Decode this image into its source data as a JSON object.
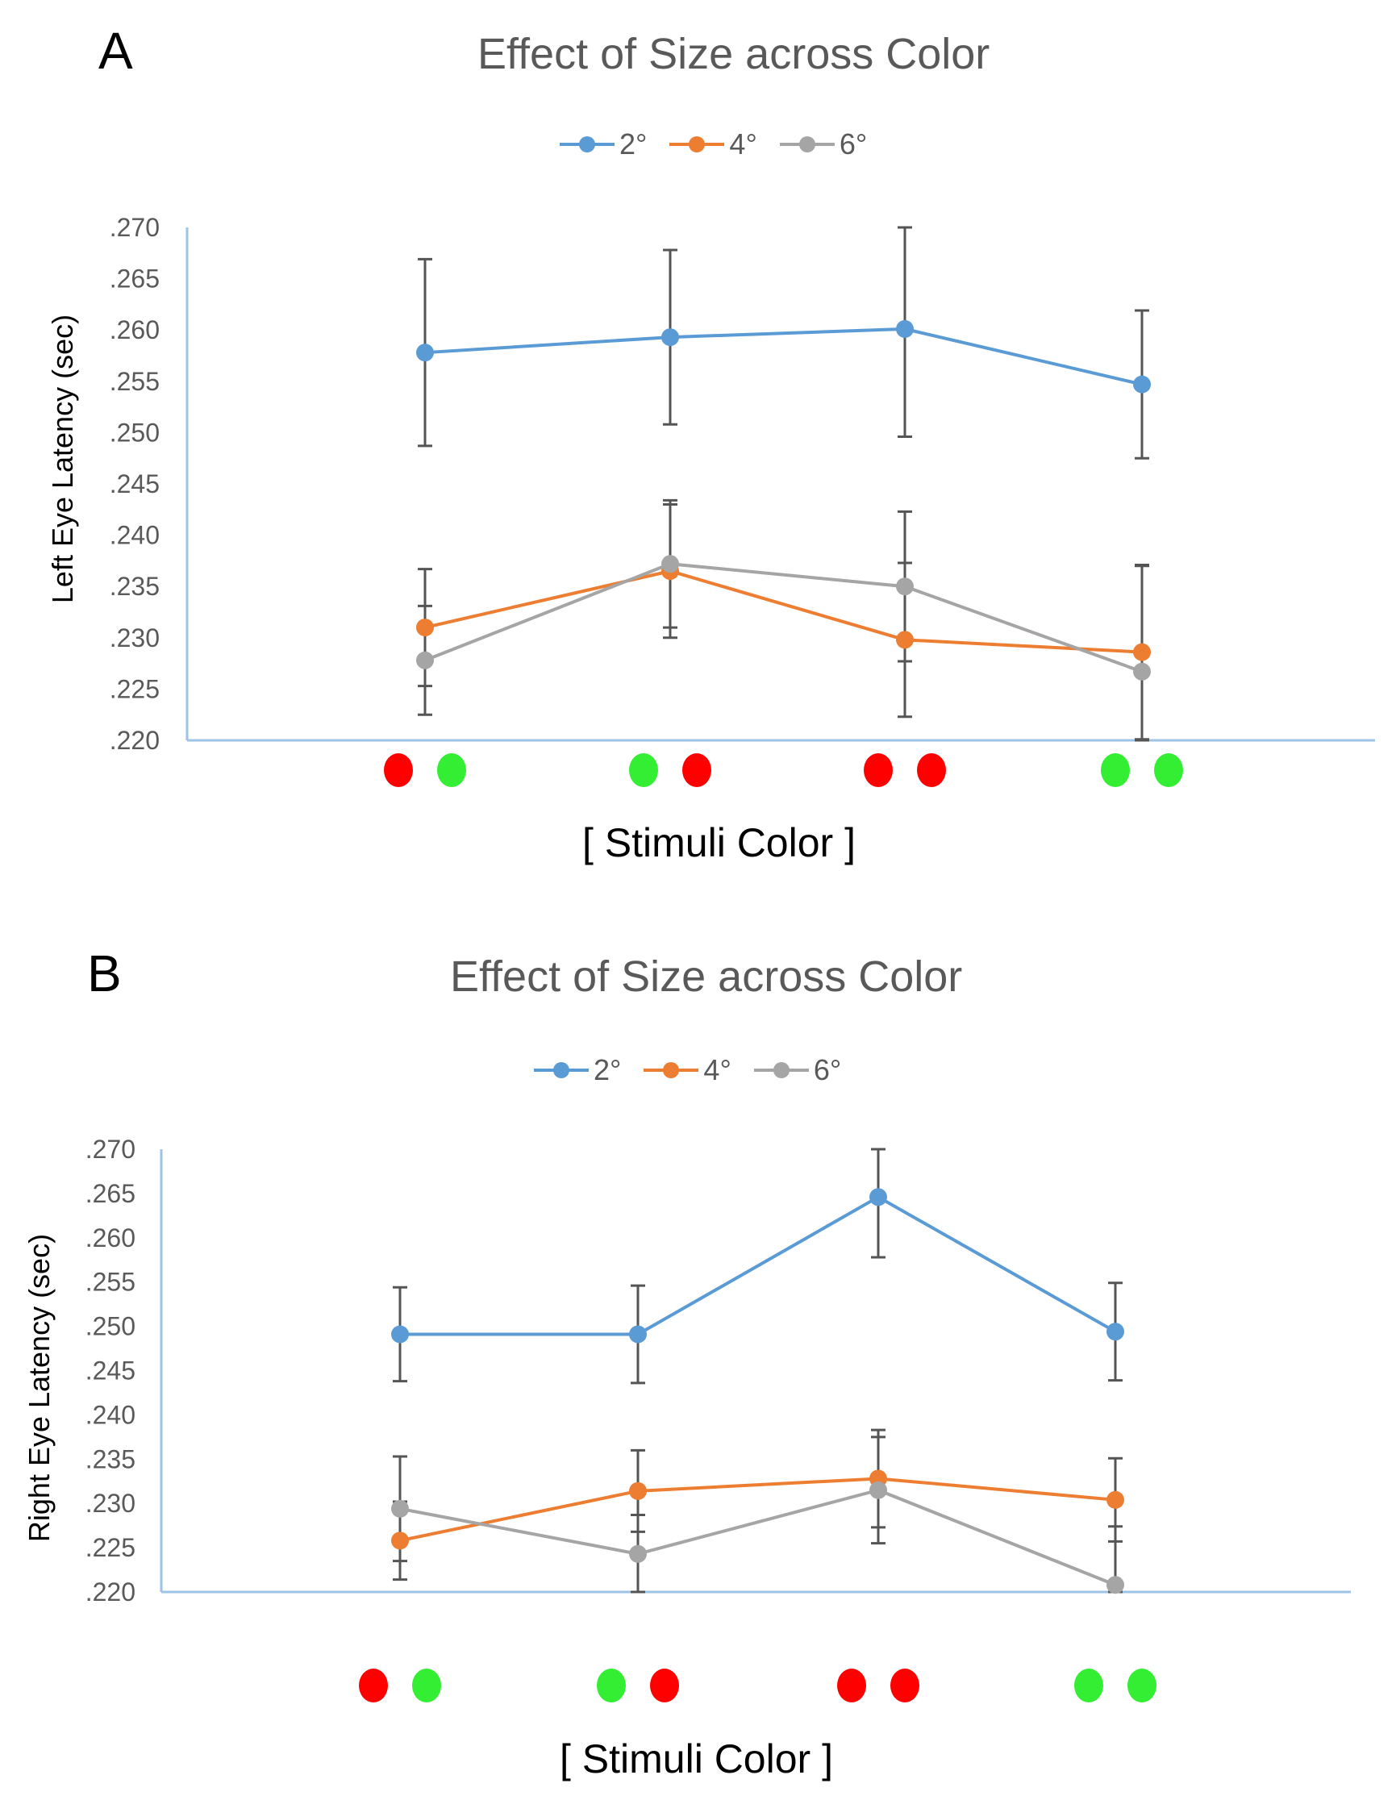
{
  "chart_data": [
    {
      "panel": "A",
      "type": "line",
      "title": "Effect of Size across Color",
      "xlabel": "[ Stimuli Color ]",
      "ylabel": "Left Eye Latency (sec)",
      "ylim": [
        0.22,
        0.27
      ],
      "yticks": [
        ".270",
        ".265",
        ".260",
        ".255",
        ".250",
        ".245",
        ".240",
        ".235",
        ".230",
        ".225",
        ".220"
      ],
      "categories": [
        {
          "dots": [
            "#ff0000",
            "#33ee33"
          ]
        },
        {
          "dots": [
            "#33ee33",
            "#ff0000"
          ]
        },
        {
          "dots": [
            "#ff0000",
            "#ff0000"
          ]
        },
        {
          "dots": [
            "#33ee33",
            "#33ee33"
          ]
        }
      ],
      "series": [
        {
          "name": "2°",
          "color": "#5b9bd5",
          "values": [
            0.2578,
            0.2593,
            0.2601,
            0.2547
          ],
          "errors": [
            0.0091,
            0.0085,
            0.0105,
            0.0072
          ]
        },
        {
          "name": "4°",
          "color": "#ed7d31",
          "values": [
            0.231,
            0.2365,
            0.2298,
            0.2286
          ],
          "errors": [
            0.0057,
            0.0065,
            0.0075,
            0.0085
          ]
        },
        {
          "name": "6°",
          "color": "#a5a5a5",
          "values": [
            0.2278,
            0.2372,
            0.235,
            0.2267
          ],
          "errors": [
            0.0053,
            0.0062,
            0.0073,
            0.0103
          ]
        }
      ]
    },
    {
      "panel": "B",
      "type": "line",
      "title": "Effect of Size across Color",
      "xlabel": "[ Stimuli Color ]",
      "ylabel": "Right Eye Latency (sec)",
      "ylim": [
        0.22,
        0.27
      ],
      "yticks": [
        ".270",
        ".265",
        ".260",
        ".255",
        ".250",
        ".245",
        ".240",
        ".235",
        ".230",
        ".225",
        ".220"
      ],
      "categories": [
        {
          "dots": [
            "#ff0000",
            "#33ee33"
          ]
        },
        {
          "dots": [
            "#33ee33",
            "#ff0000"
          ]
        },
        {
          "dots": [
            "#ff0000",
            "#ff0000"
          ]
        },
        {
          "dots": [
            "#33ee33",
            "#33ee33"
          ]
        }
      ],
      "series": [
        {
          "name": "2°",
          "color": "#5b9bd5",
          "values": [
            0.2491,
            0.2491,
            0.2646,
            0.2494
          ],
          "errors": [
            0.0053,
            0.0055,
            0.0068,
            0.0055
          ]
        },
        {
          "name": "4°",
          "color": "#ed7d31",
          "values": [
            0.2258,
            0.2314,
            0.2328,
            0.2304
          ],
          "errors": [
            0.0044,
            0.0046,
            0.0055,
            0.0047
          ]
        },
        {
          "name": "6°",
          "color": "#a5a5a5",
          "values": [
            0.2294,
            0.2243,
            0.2315,
            0.2208
          ],
          "errors": [
            0.0059,
            0.0044,
            0.006,
            0.0066
          ]
        }
      ]
    }
  ]
}
